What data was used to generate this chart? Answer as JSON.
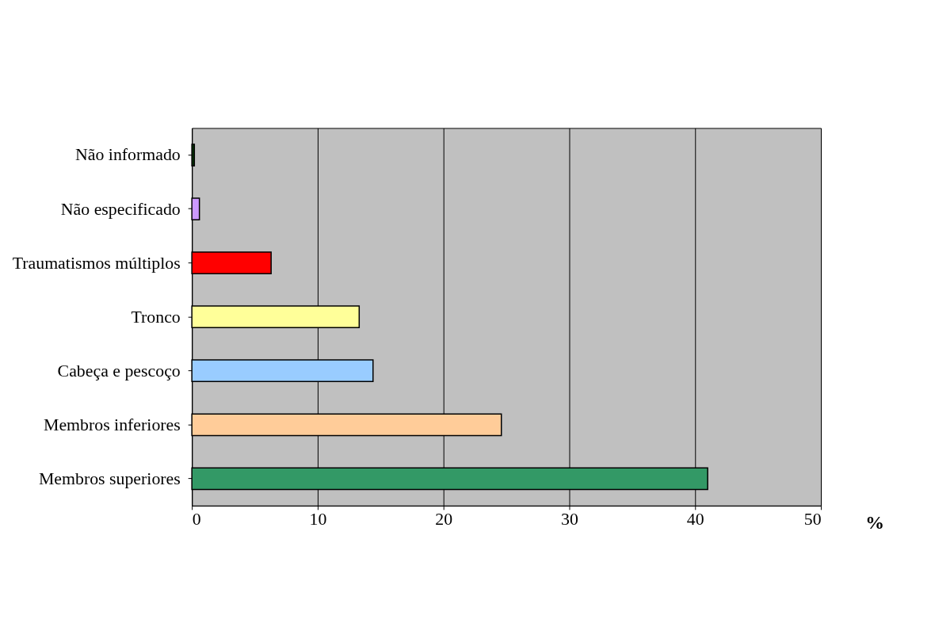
{
  "chart_data": {
    "type": "bar",
    "orientation": "horizontal",
    "xlabel": "%",
    "categories": [
      "Não informado",
      "Não especificado",
      "Traumatismos múltiplos",
      "Tronco",
      "Cabeça e pescoço",
      "Membros inferiores",
      "Membros superiores"
    ],
    "values": [
      0.2,
      0.6,
      6.3,
      13.3,
      14.4,
      24.6,
      41.0
    ],
    "colors": [
      "#003300",
      "#cc99ff",
      "#ff0000",
      "#ffff99",
      "#99ccff",
      "#ffcc99",
      "#339966"
    ],
    "xlim": [
      0,
      50
    ],
    "xticks": [
      0,
      10,
      20,
      30,
      40,
      50
    ],
    "grid": "x"
  }
}
